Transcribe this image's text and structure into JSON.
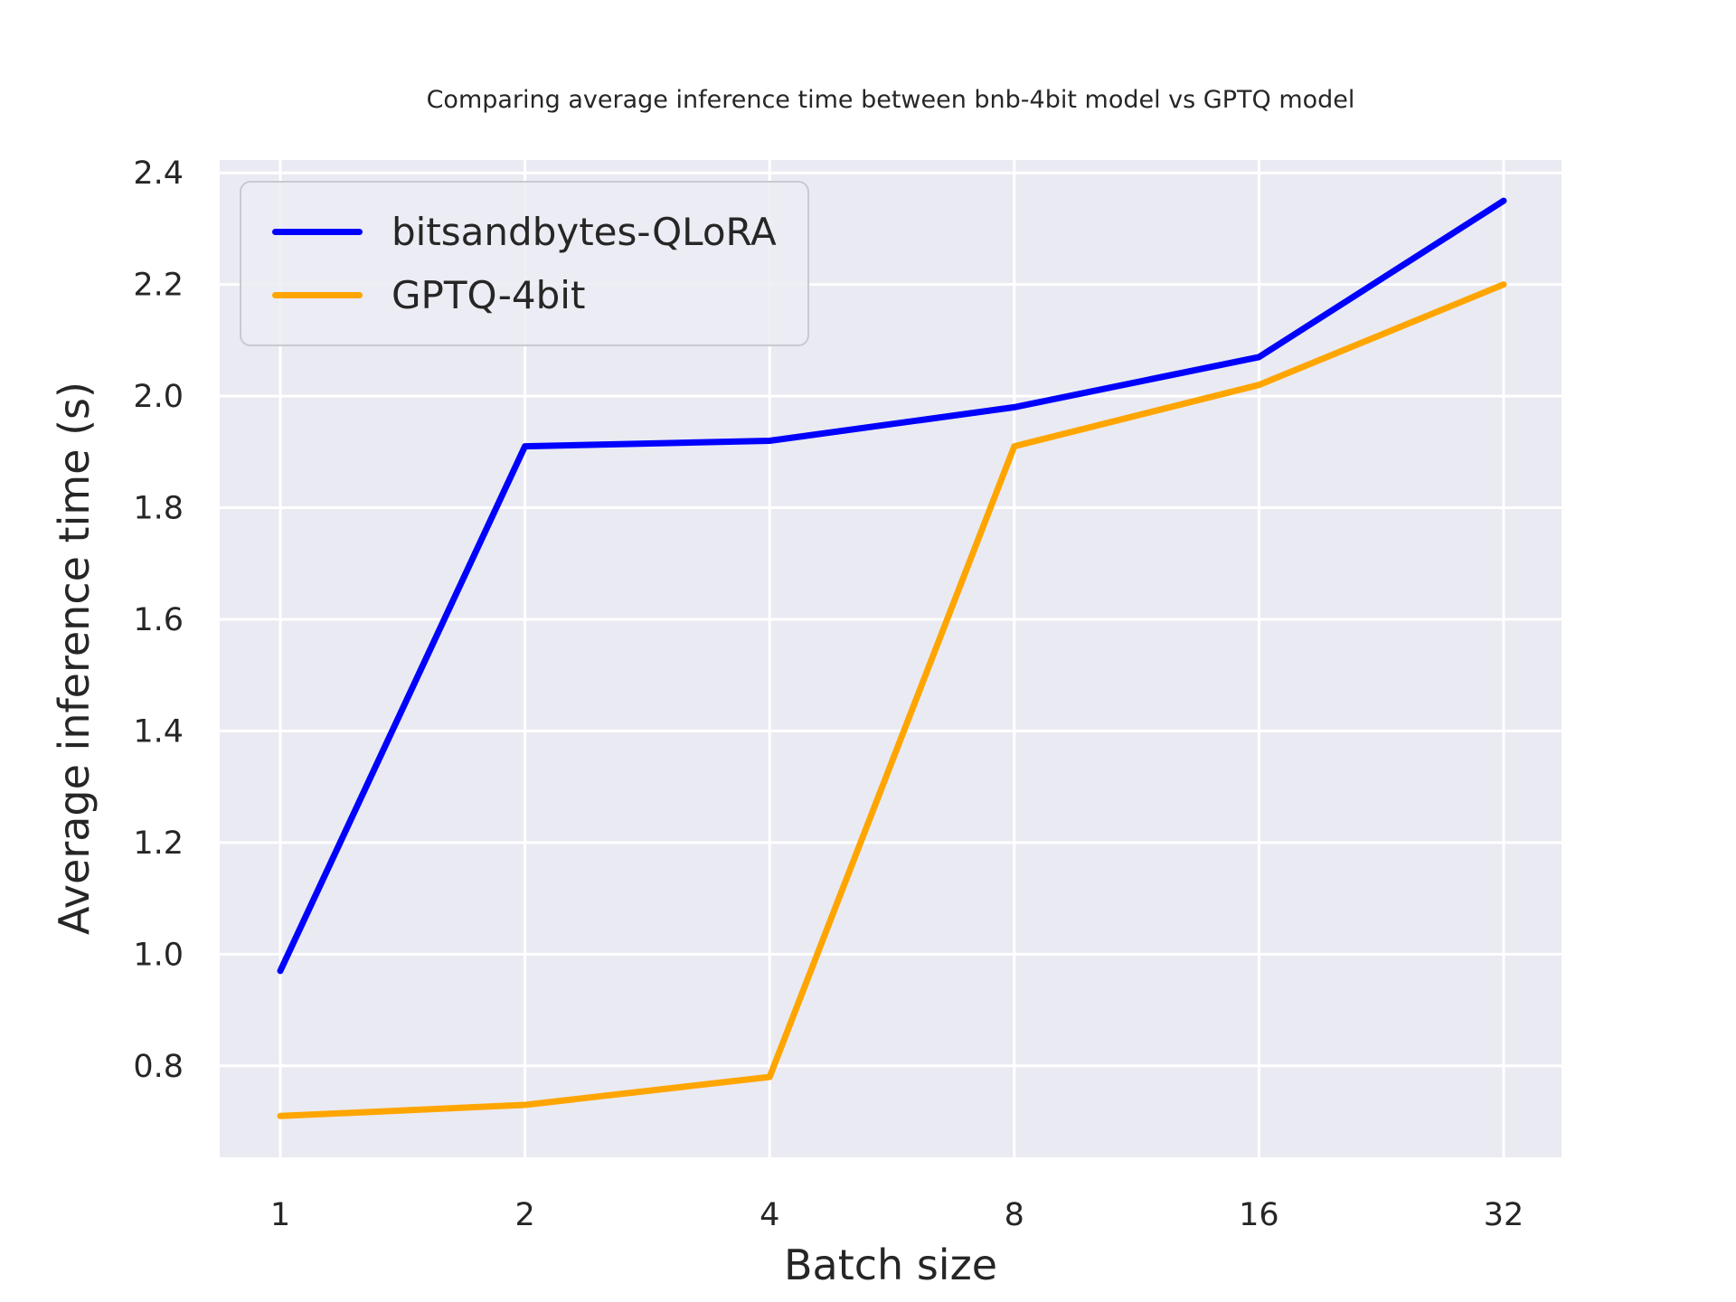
{
  "chart_data": {
    "type": "line",
    "title": "Comparing average inference time between bnb-4bit model vs GPTQ model",
    "xlabel": "Batch size",
    "ylabel": "Average inference time (s)",
    "categories": [
      1,
      2,
      4,
      8,
      16,
      32
    ],
    "x_tick_labels": [
      "1",
      "2",
      "4",
      "8",
      "16",
      "32"
    ],
    "y_ticks": [
      2.4,
      2.2,
      2.0,
      1.8,
      1.6,
      1.4,
      1.2,
      1.0,
      0.8
    ],
    "y_tick_labels": [
      "2.4",
      "2.2",
      "2.0",
      "1.8",
      "1.6",
      "1.4",
      "1.2",
      "1.0",
      "0.8"
    ],
    "ylim": [
      0.636,
      2.423
    ],
    "grid": true,
    "legend_position": "upper-left",
    "series": [
      {
        "name": "bitsandbytes-QLoRA",
        "color": "#0000ff",
        "values": [
          0.97,
          1.91,
          1.92,
          1.98,
          2.07,
          2.35
        ]
      },
      {
        "name": "GPTQ-4bit",
        "color": "#ffa500",
        "values": [
          0.71,
          0.73,
          0.78,
          1.91,
          2.02,
          2.2
        ]
      }
    ],
    "colors": {
      "axes_background": "#eaeaf2",
      "gridline": "#ffffff",
      "text": "#262626",
      "legend_border": "#c9c9d2"
    }
  }
}
